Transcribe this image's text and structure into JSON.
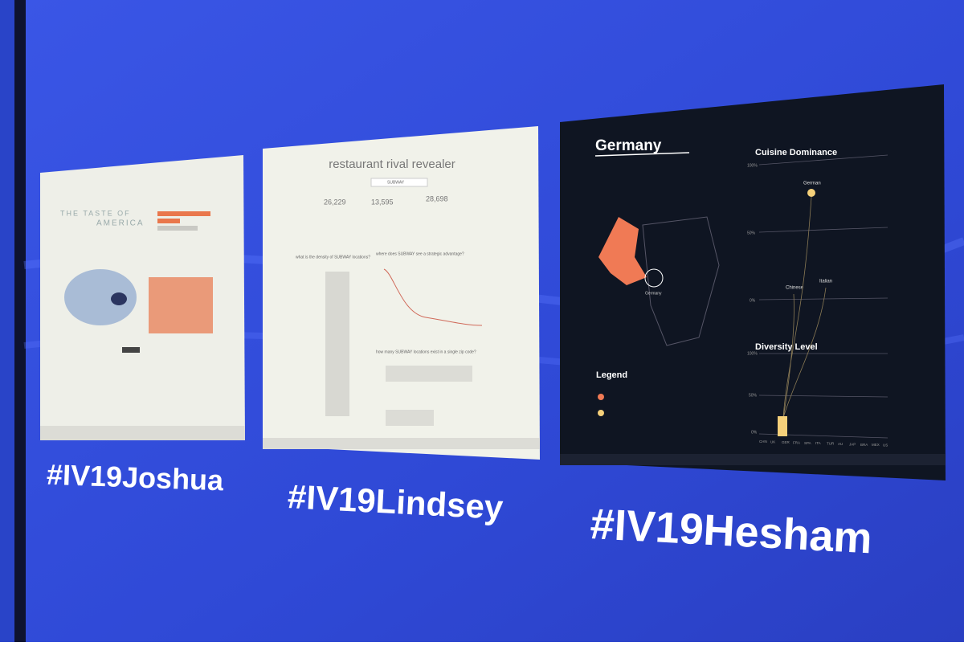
{
  "panels": [
    {
      "caption": "#IV19Joshua",
      "screen": {
        "title_line1": "THE TASTE OF",
        "title_line2": "AMERICA"
      }
    },
    {
      "caption": "#IV19Lindsey",
      "screen": {
        "title": "restaurant rival revealer",
        "dropdown": "SUBWAY",
        "stats": [
          "26,229",
          "13,595",
          "28,698"
        ],
        "questions": [
          "what is the density of SUBWAY locations?",
          "where does SUBWAY see a strategic advantage?",
          "how many SUBWAY locations exist in a single zip code?"
        ]
      }
    },
    {
      "caption": "#IV19Hesham",
      "screen": {
        "title": "Germany",
        "map_label": "Germany",
        "section1": "Cuisine Dominance",
        "section2": "Diversity Level",
        "legend": "Legend",
        "cuisines": [
          "German",
          "Chinese",
          "Italian"
        ],
        "ticks": [
          "100%",
          "50%",
          "0%"
        ],
        "countries": [
          "CHN",
          "UK",
          "GER",
          "FRA",
          "SPA",
          "ITA",
          "TUR",
          "AU",
          "JAP",
          "BRA",
          "MEX",
          "US"
        ]
      }
    }
  ]
}
